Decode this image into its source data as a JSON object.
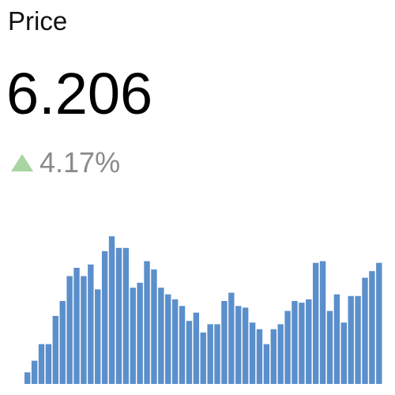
{
  "header": {
    "label": "Price",
    "value": "6.206",
    "change": "4.17%",
    "direction_icon": "up-triangle-icon"
  },
  "colors": {
    "bar": "#5b8fcb",
    "up": "#a8d5a2",
    "change_text": "#8a8a8a"
  },
  "chart_data": {
    "type": "bar",
    "xlabel": "",
    "ylabel": "",
    "grid": false,
    "legend": "none",
    "ylim": [
      0,
      100
    ],
    "values": [
      7,
      14,
      24,
      24,
      41,
      50,
      65,
      70,
      65,
      72,
      57,
      80,
      89,
      82,
      82,
      58,
      61,
      74,
      69,
      58,
      54,
      51,
      47,
      38,
      43,
      31,
      36,
      36,
      50,
      55,
      47,
      46,
      37,
      33,
      24,
      33,
      36,
      44,
      50,
      49,
      51,
      73,
      74,
      44,
      54,
      37,
      53,
      53,
      64,
      68,
      73
    ]
  }
}
